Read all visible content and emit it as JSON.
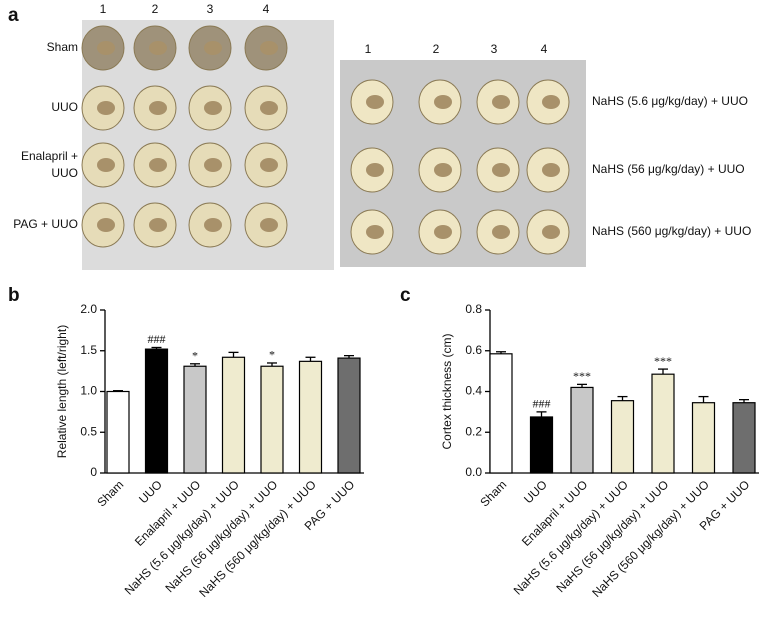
{
  "panel_a": {
    "label": "a",
    "left_columns": [
      "1",
      "2",
      "3",
      "4"
    ],
    "left_rows": [
      "Sham",
      "UUO",
      "Enalapril +\nUUO",
      "PAG + UUO"
    ],
    "right_columns": [
      "1",
      "2",
      "3",
      "4"
    ],
    "right_rows": [
      "NaHS (5.6 μg/kg/day) + UUO",
      "NaHS (56 μg/kg/day) + UUO",
      "NaHS (560 μg/kg/day) + UUO"
    ]
  },
  "chart_data": [
    {
      "type": "bar",
      "label": "b",
      "ylabel": "Relative length (left/right)",
      "categories": [
        "Sham",
        "UUO",
        "Enalapril + UUO",
        "NaHS (5.6 μg/kg/day) + UUO",
        "NaHS (56 μg/kg/day) + UUO",
        "NaHS (560 μg/kg/day) + UUO",
        "PAG + UUO"
      ],
      "values": [
        1.0,
        1.52,
        1.31,
        1.42,
        1.31,
        1.37,
        1.41
      ],
      "errors": [
        0.01,
        0.02,
        0.03,
        0.06,
        0.04,
        0.05,
        0.03
      ],
      "colors": [
        "#ffffff",
        "#000000",
        "#c8c8c8",
        "#efebcf",
        "#efebcf",
        "#efebcf",
        "#6e6e6e"
      ],
      "annotations": [
        {
          "category": "UUO",
          "text": "###"
        },
        {
          "category": "Enalapril + UUO",
          "text": "*"
        },
        {
          "category": "NaHS (56 μg/kg/day) + UUO",
          "text": "*"
        }
      ],
      "ylim": [
        0,
        2
      ],
      "yticks": [
        0,
        0.5,
        {
          "value": 1,
          "label": "1.0"
        },
        1.5,
        {
          "value": 2,
          "label": "2.0"
        }
      ]
    },
    {
      "type": "bar",
      "label": "c",
      "ylabel": "Cortex thickness (cm)",
      "categories": [
        "Sham",
        "UUO",
        "Enalapril + UUO",
        "NaHS (5.6 μg/kg/day) + UUO",
        "NaHS (56 μg/kg/day) + UUO",
        "NaHS (560 μg/kg/day) + UUO",
        "PAG + UUO"
      ],
      "values": [
        0.585,
        0.275,
        0.42,
        0.355,
        0.485,
        0.345,
        0.345
      ],
      "errors": [
        0.01,
        0.025,
        0.015,
        0.02,
        0.025,
        0.03,
        0.015
      ],
      "colors": [
        "#ffffff",
        "#000000",
        "#c8c8c8",
        "#efebcf",
        "#efebcf",
        "#efebcf",
        "#6e6e6e"
      ],
      "annotations": [
        {
          "category": "UUO",
          "text": "###"
        },
        {
          "category": "Enalapril + UUO",
          "text": "***"
        },
        {
          "category": "NaHS (56 μg/kg/day) + UUO",
          "text": "***"
        }
      ],
      "ylim": [
        0,
        0.8
      ],
      "yticks": [
        {
          "value": 0,
          "label": "0.0"
        },
        0.2,
        0.4,
        0.6,
        0.8
      ]
    }
  ]
}
